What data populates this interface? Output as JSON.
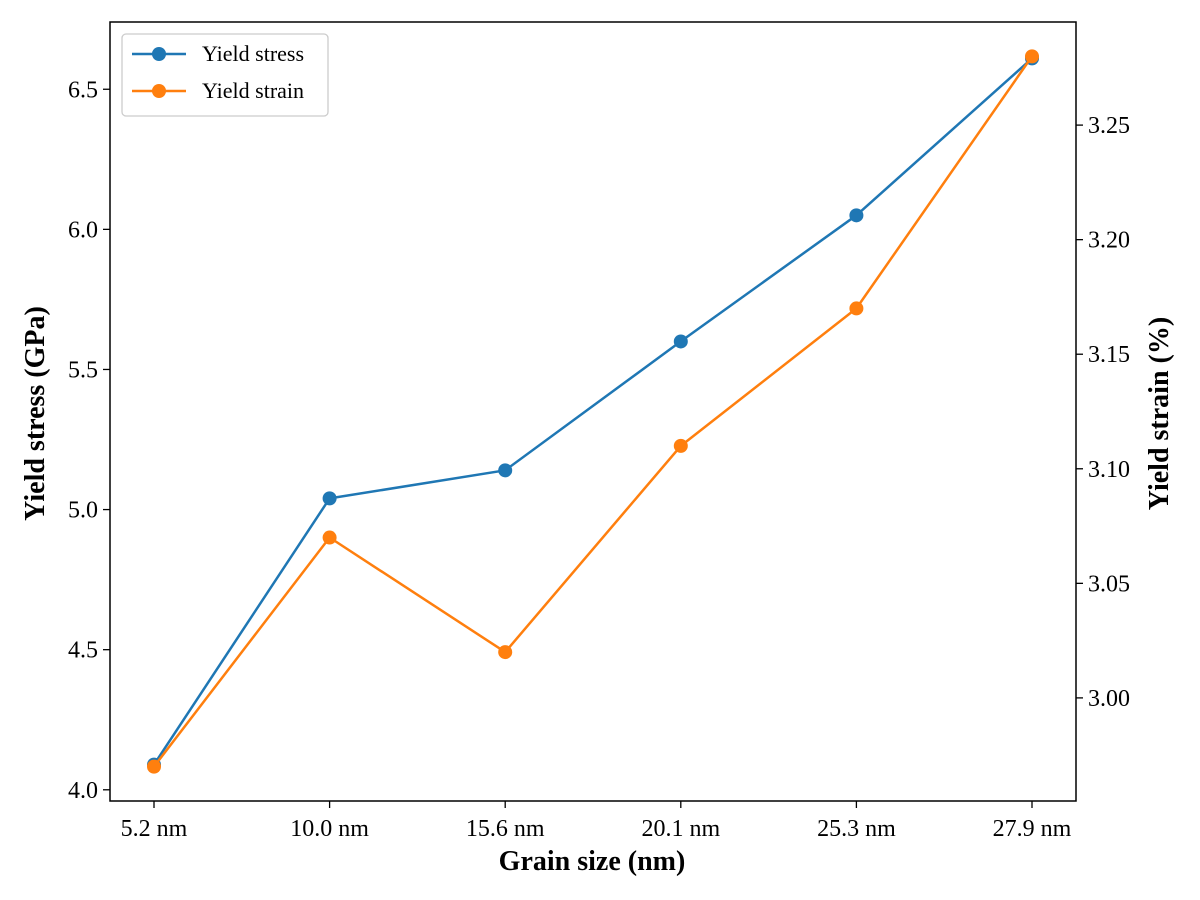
{
  "chart_data": {
    "type": "line",
    "xlabel": "Grain size (nm)",
    "ylabel_left": "Yield stress (GPa)",
    "ylabel_right": "Yield strain (%)",
    "categories": [
      "5.2 nm",
      "10.0 nm",
      "15.6 nm",
      "20.1 nm",
      "25.3 nm",
      "27.9 nm"
    ],
    "y_left": {
      "lim": [
        3.96,
        6.74
      ],
      "ticks": [
        4.0,
        4.5,
        5.0,
        5.5,
        6.0,
        6.5
      ],
      "tick_labels": [
        "4.0",
        "4.5",
        "5.0",
        "5.5",
        "6.0",
        "6.5"
      ]
    },
    "y_right": {
      "lim": [
        2.955,
        3.295
      ],
      "ticks": [
        3.0,
        3.05,
        3.1,
        3.15,
        3.2,
        3.25
      ],
      "tick_labels": [
        "3.00",
        "3.05",
        "3.10",
        "3.15",
        "3.20",
        "3.25"
      ]
    },
    "series": [
      {
        "name": "Yield stress",
        "axis": "left",
        "color": "#1f77b4",
        "values": [
          4.09,
          5.04,
          5.14,
          5.6,
          6.05,
          6.61
        ]
      },
      {
        "name": "Yield strain",
        "axis": "right",
        "color": "#ff7f0e",
        "values": [
          2.97,
          3.07,
          3.02,
          3.11,
          3.17,
          3.28
        ]
      }
    ],
    "legend": {
      "position": "top-left"
    },
    "grid": false
  }
}
